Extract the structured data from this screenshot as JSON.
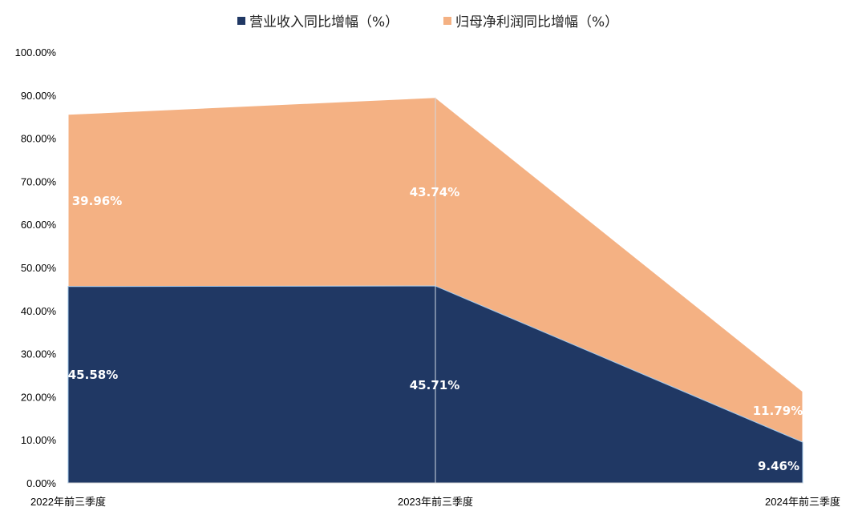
{
  "chart_data": {
    "type": "area",
    "stacked": true,
    "categories": [
      "2022年前三季度",
      "2023年前三季度",
      "2024年前三季度"
    ],
    "series": [
      {
        "name": "营业收入同比增幅（%）",
        "values": [
          45.58,
          45.71,
          9.46
        ],
        "labels": [
          "45.58%",
          "45.71%",
          "9.46%"
        ],
        "color": "#203864"
      },
      {
        "name": "归母净利润同比增幅（%）",
        "values": [
          39.96,
          43.74,
          11.79
        ],
        "labels": [
          "39.96%",
          "43.74%",
          "11.79%"
        ],
        "color": "#F4B183"
      }
    ],
    "ylim": [
      0,
      100
    ],
    "y_ticks": [
      "0.00%",
      "10.00%",
      "20.00%",
      "30.00%",
      "40.00%",
      "50.00%",
      "60.00%",
      "70.00%",
      "80.00%",
      "90.00%",
      "100.00%"
    ],
    "title": "",
    "xlabel": "",
    "ylabel": "",
    "grid": false,
    "legend_position": "top"
  }
}
